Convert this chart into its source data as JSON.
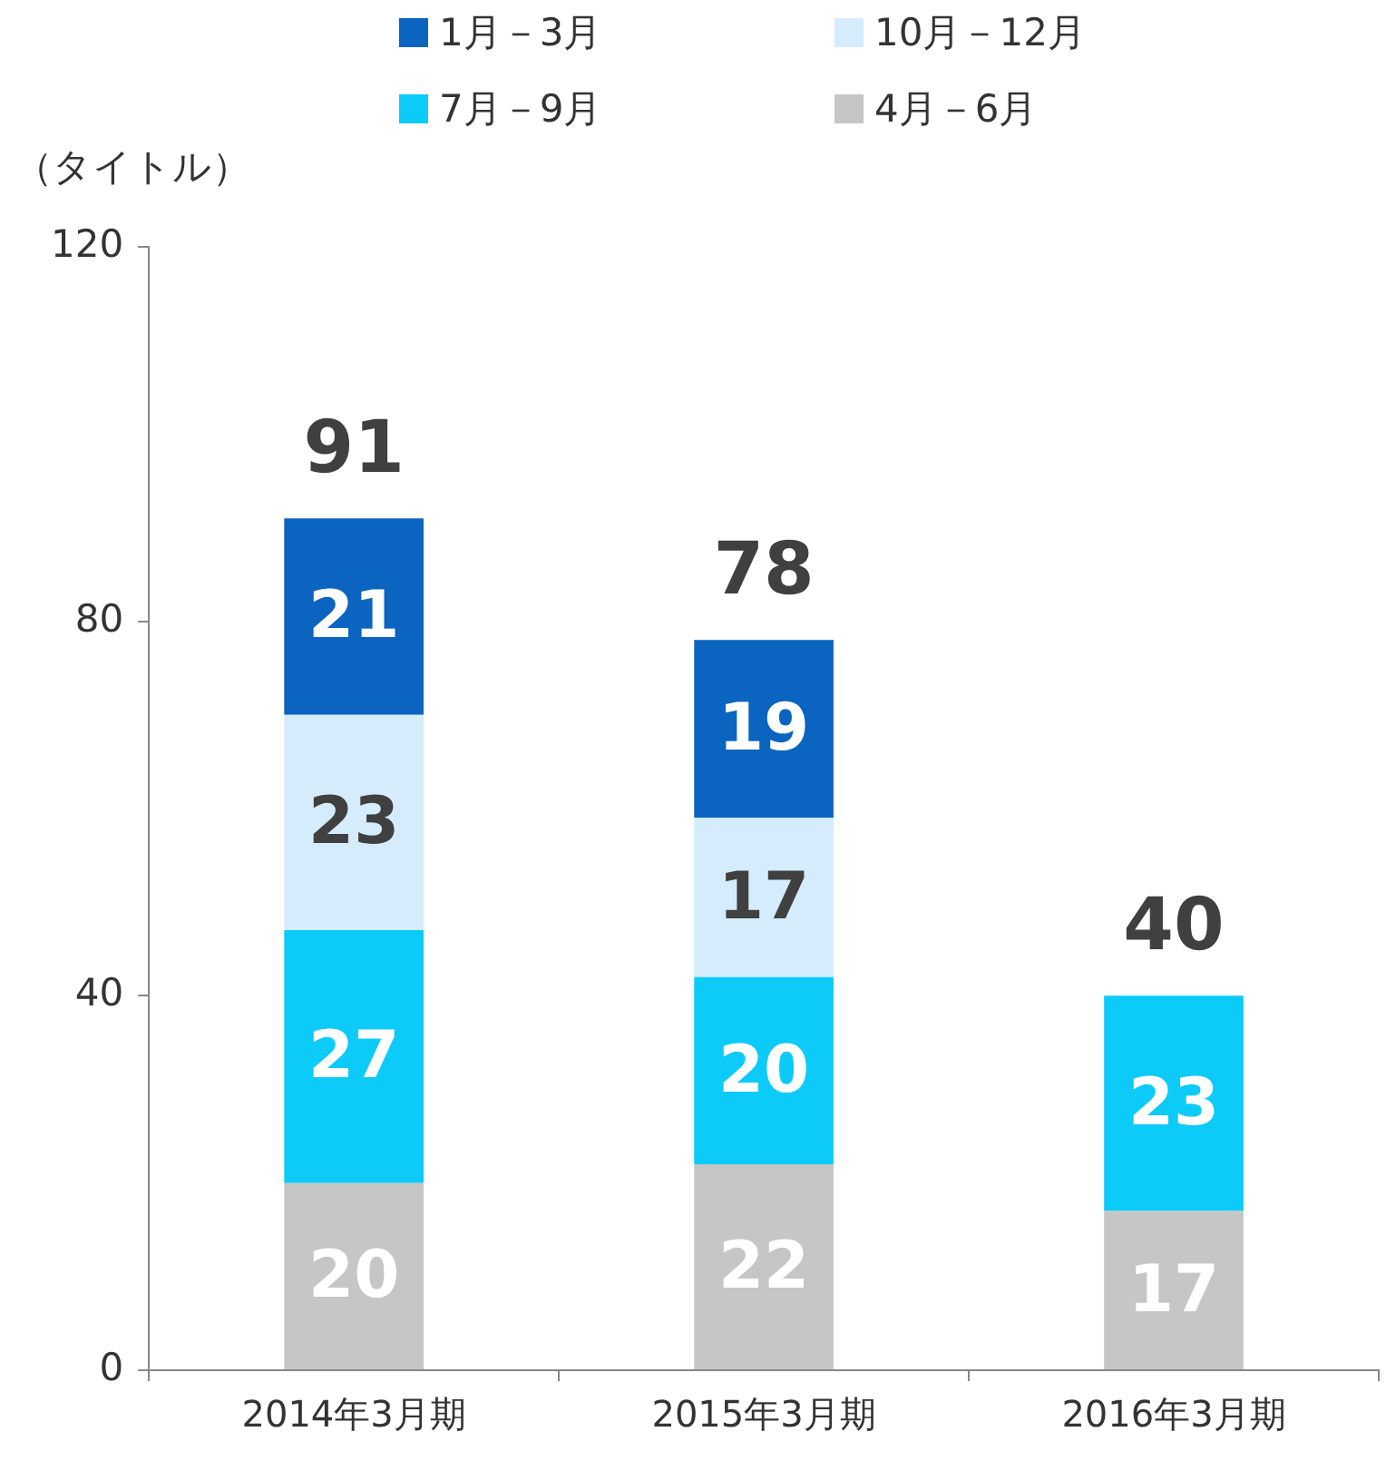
{
  "chart_data": {
    "type": "bar",
    "stacked": true,
    "ylabel": "（タイトル）",
    "categories": [
      "2014年3月期",
      "2015年3月期",
      "2016年3月期"
    ],
    "series": [
      {
        "name": "4月－6月",
        "color": "#c6c6c6",
        "values": [
          20,
          22,
          17
        ]
      },
      {
        "name": "7月－9月",
        "color": "#0dcbf9",
        "values": [
          27,
          20,
          23
        ]
      },
      {
        "name": "10月－12月",
        "color": "#d5ecfc",
        "values": [
          23,
          17,
          null
        ]
      },
      {
        "name": "1月－3月",
        "color": "#0a64c0",
        "values": [
          21,
          19,
          null
        ]
      }
    ],
    "ylim": [
      0,
      120
    ],
    "yticks": [
      0,
      40,
      80,
      120
    ],
    "grid": false,
    "legend": "top",
    "data_labels": true,
    "totals": [
      "91",
      "78",
      "40"
    ]
  }
}
